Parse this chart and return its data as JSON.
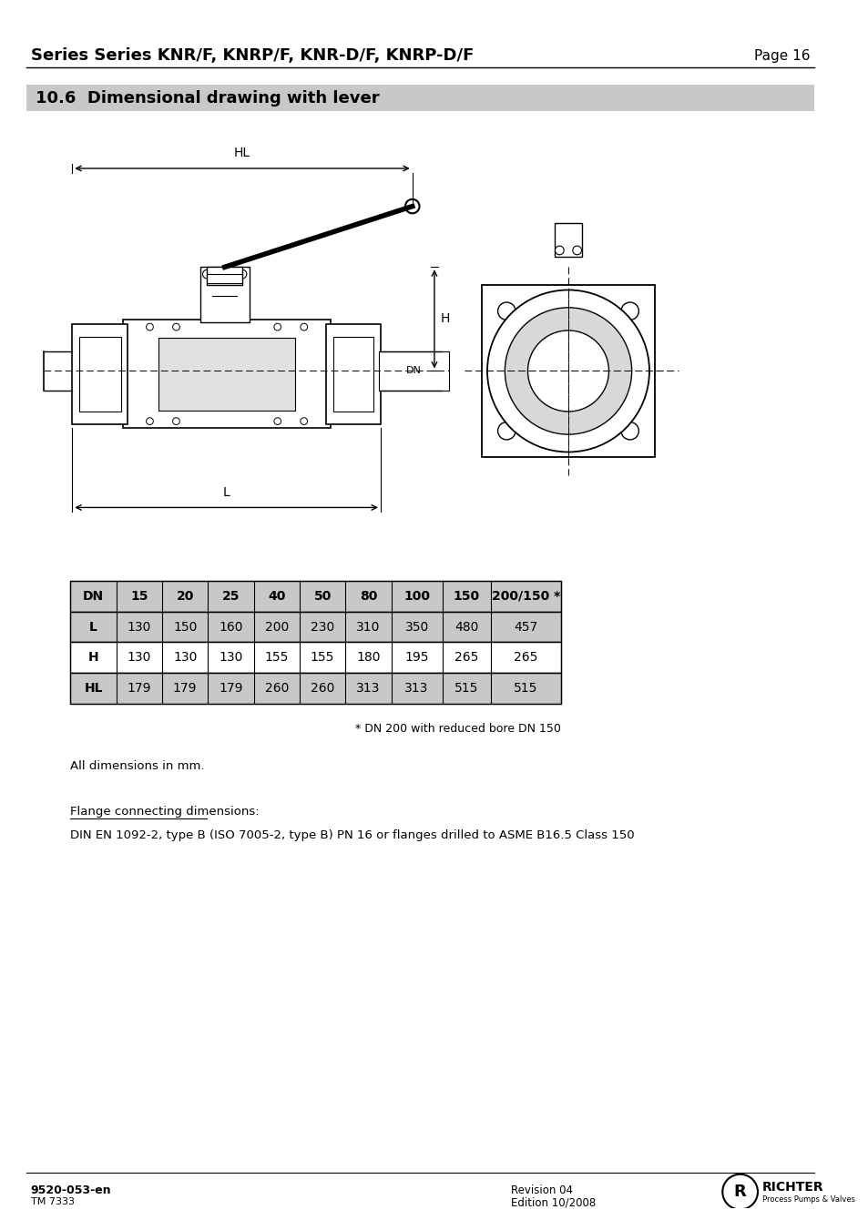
{
  "page_title": "Series Series KNR/F, KNRP/F, KNR-D/F, KNRP-D/F",
  "page_number": "Page 16",
  "section_title": "10.6  Dimensional drawing with lever",
  "section_bg_color": "#c8c8c8",
  "table_header_bg": "#c8c8c8",
  "table_border_color": "#000000",
  "table_columns": [
    "DN",
    "15",
    "20",
    "25",
    "40",
    "50",
    "80",
    "100",
    "150",
    "200/150 *"
  ],
  "table_rows": [
    [
      "L",
      "130",
      "150",
      "160",
      "200",
      "230",
      "310",
      "350",
      "480",
      "457"
    ],
    [
      "H",
      "130",
      "130",
      "130",
      "155",
      "155",
      "180",
      "195",
      "265",
      "265"
    ],
    [
      "HL",
      "179",
      "179",
      "179",
      "260",
      "260",
      "313",
      "313",
      "515",
      "515"
    ]
  ],
  "footnote": "* DN 200 with reduced bore DN 150",
  "dimensions_note": "All dimensions in mm.",
  "flange_title": "Flange connecting dimensions:",
  "flange_text": "DIN EN 1092-2, type B (ISO 7005-2, type B) PN 16 or flanges drilled to ASME B16.5 Class 150",
  "footer_left1": "9520-053-en",
  "footer_left2": "TM 7333",
  "footer_right1": "Revision 04",
  "footer_right2": "Edition 10/2008",
  "bg_color": "#ffffff",
  "text_color": "#000000"
}
